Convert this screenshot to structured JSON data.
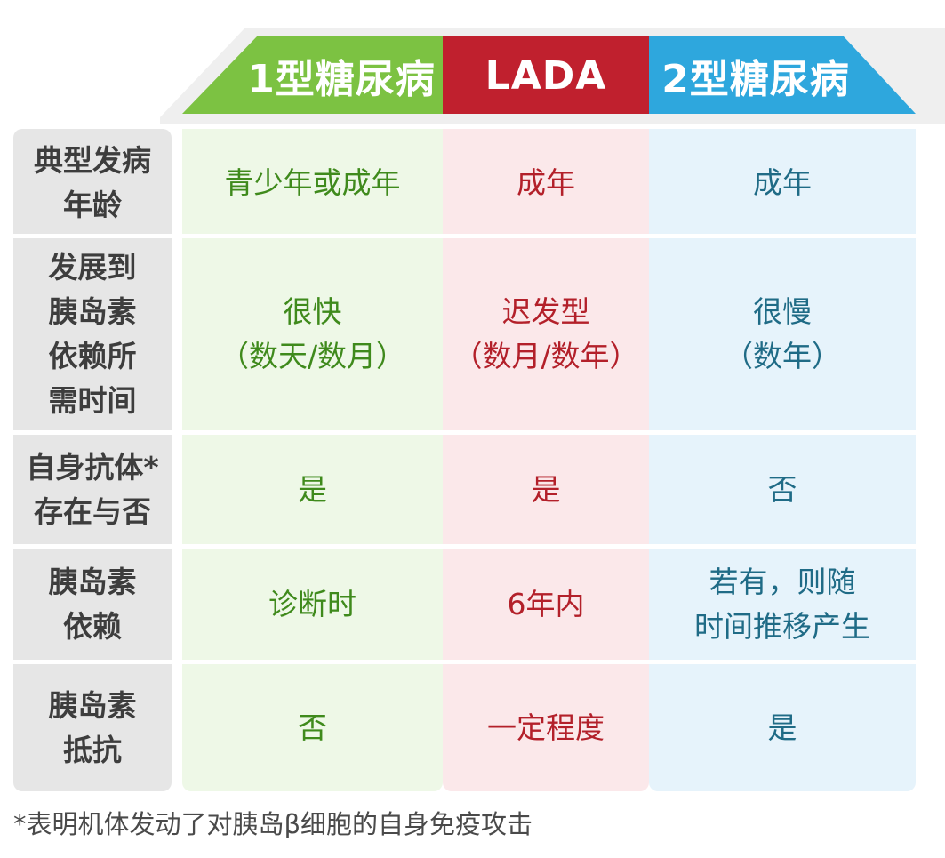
{
  "colors": {
    "type1": "#7cc242",
    "lada": "#c0202e",
    "type2": "#2ea7dd",
    "type1_bg": "#eef8e7",
    "lada_bg": "#fbe8ea",
    "type2_bg": "#e6f3fb",
    "label_bg": "#e6e6e6"
  },
  "headers": [
    "1型糖尿病",
    "LADA",
    "2型糖尿病"
  ],
  "rows": [
    {
      "label": [
        "典型发病",
        "年龄"
      ],
      "cells": [
        [
          "青少年或成年"
        ],
        [
          "成年"
        ],
        [
          "成年"
        ]
      ]
    },
    {
      "label": [
        "发展到",
        "胰岛素",
        "依赖所",
        "需时间"
      ],
      "cells": [
        [
          "很快",
          "（数天/数月）"
        ],
        [
          "迟发型",
          "（数月/数年）"
        ],
        [
          "很慢",
          "（数年）"
        ]
      ]
    },
    {
      "label": [
        "自身抗体*",
        "存在与否"
      ],
      "cells": [
        [
          "是"
        ],
        [
          "是"
        ],
        [
          "否"
        ]
      ]
    },
    {
      "label": [
        "胰岛素",
        "依赖"
      ],
      "cells": [
        [
          "诊断时"
        ],
        [
          "6年内"
        ],
        [
          "若有，则随",
          "时间推移产生"
        ]
      ]
    },
    {
      "label": [
        "胰岛素",
        "抵抗"
      ],
      "cells": [
        [
          "否"
        ],
        [
          "一定程度"
        ],
        [
          "是"
        ]
      ]
    }
  ],
  "footnote": "*表明机体发动了对胰岛β细胞的自身免疫攻击"
}
